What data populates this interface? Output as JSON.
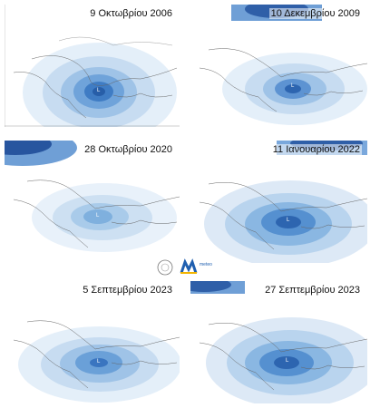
{
  "panels": [
    {
      "id": "p1",
      "title": "9 Οκτωβρίου 2006",
      "center": "L",
      "top_band": false,
      "intensity": "strong"
    },
    {
      "id": "p2",
      "title": "10 Δεκεμβρίου 2009",
      "center": "L",
      "top_band": true,
      "intensity": "strong"
    },
    {
      "id": "p3",
      "title": "28 Οκτωβρίου 2020",
      "center": "L",
      "top_band": true,
      "intensity": "weak"
    },
    {
      "id": "p4",
      "title": "11 Ιανουαρίου 2022",
      "center": "L",
      "top_band": true,
      "intensity": "strong"
    },
    {
      "id": "p5",
      "title": "5 Σεπτεμβρίου 2023",
      "center": "L",
      "top_band": false,
      "intensity": "medium"
    },
    {
      "id": "p6",
      "title": "27 Σεπτεμβρίου 2023",
      "center": "L",
      "top_band": true,
      "intensity": "strong"
    }
  ],
  "logo": {
    "name": "meteo-logo",
    "text": "meteo"
  },
  "colors": {
    "deep": "#1f4f9c",
    "mid": "#4b86c8",
    "light": "#a9cbea",
    "pale": "#dbe9f6",
    "land": "#555555"
  }
}
